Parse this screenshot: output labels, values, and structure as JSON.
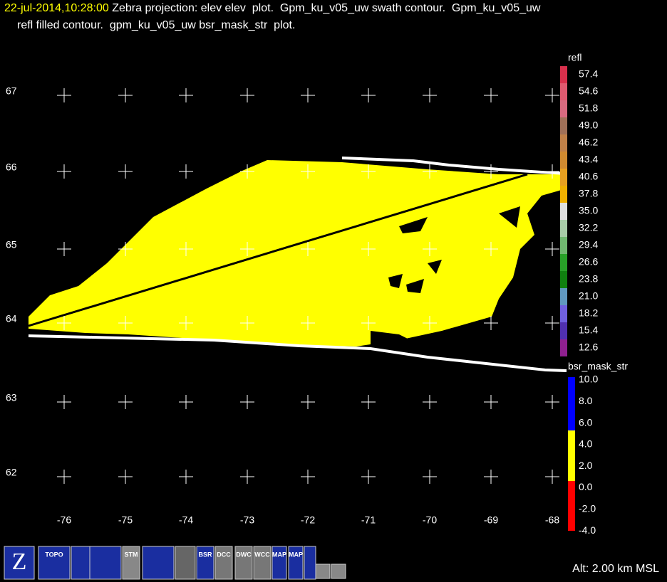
{
  "header": {
    "timestamp": "22-jul-2014,10:28:00",
    "line1": " Zebra projection: elev elev  plot.  Gpm_ku_v05_uw swath contour.  Gpm_ku_v05_uw",
    "line2": "refl filled contour.  gpm_ku_v05_uw bsr_mask_str  plot."
  },
  "plot": {
    "y_labels": [
      "67",
      "66",
      "65",
      "64",
      "63",
      "62"
    ],
    "x_labels": [
      "-76",
      "-75",
      "-74",
      "-73",
      "-72",
      "-71",
      "-70",
      "-69",
      "-68"
    ]
  },
  "legends": [
    {
      "title": "refl",
      "labels": [
        "57.4",
        "54.6",
        "51.8",
        "49.0",
        "46.2",
        "43.4",
        "40.6",
        "37.8",
        "35.0",
        "32.2",
        "29.4",
        "26.6",
        "23.8",
        "21.0",
        "18.2",
        "15.4",
        "12.6"
      ],
      "colors": [
        "#d8304c",
        "#e05a70",
        "#d86a80",
        "#a07058",
        "#c08048",
        "#d08a30",
        "#e8a020",
        "#f0b000",
        "#e0e0e0",
        "#a8cca8",
        "#70b870",
        "#28a028",
        "#108010",
        "#6098c0",
        "#7060e0",
        "#5030b0",
        "#902090"
      ]
    },
    {
      "title": "bsr_mask_str",
      "labels": [
        "10.0",
        "8.0",
        "6.0",
        "4.0",
        "2.0",
        "0.0",
        "-2.0",
        "-4.0"
      ]
    }
  ],
  "toolbar": [
    "TOPO",
    "STM",
    "BSR",
    "DCC",
    "DWC",
    "WCC",
    "MAP",
    "MAP"
  ],
  "status": "Alt: 2.00 km MSL"
}
